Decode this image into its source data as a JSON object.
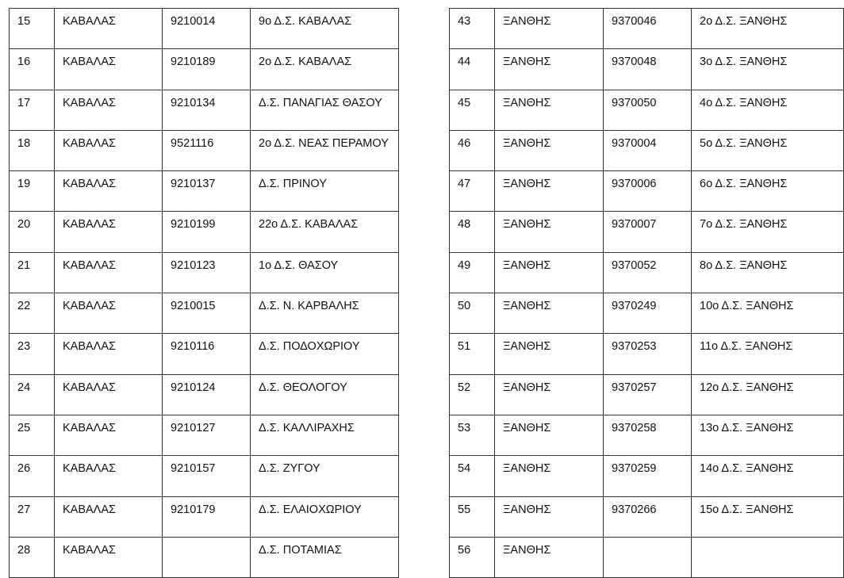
{
  "left_table": {
    "rows": [
      {
        "no": "15",
        "prefecture": "ΚΑΒΑΛΑΣ",
        "code": "9210014",
        "school": "9ο Δ.Σ. ΚΑΒΑΛΑΣ"
      },
      {
        "no": "16",
        "prefecture": "ΚΑΒΑΛΑΣ",
        "code": "9210189",
        "school": "2ο Δ.Σ. ΚΑΒΑΛΑΣ"
      },
      {
        "no": "17",
        "prefecture": "ΚΑΒΑΛΑΣ",
        "code": "9210134",
        "school": "Δ.Σ. ΠΑΝΑΓΙΑΣ ΘΑΣΟΥ"
      },
      {
        "no": "18",
        "prefecture": "ΚΑΒΑΛΑΣ",
        "code": "9521116",
        "school": "2ο Δ.Σ. ΝΕΑΣ ΠΕΡΑΜΟΥ"
      },
      {
        "no": "19",
        "prefecture": "ΚΑΒΑΛΑΣ",
        "code": "9210137",
        "school": " Δ.Σ. ΠΡΙΝΟΥ"
      },
      {
        "no": "20",
        "prefecture": "ΚΑΒΑΛΑΣ",
        "code": "9210199",
        "school": "22ο Δ.Σ. ΚΑΒΑΛΑΣ"
      },
      {
        "no": "21",
        "prefecture": "ΚΑΒΑΛΑΣ",
        "code": "9210123",
        "school": "1ο Δ.Σ. ΘΑΣΟΥ"
      },
      {
        "no": "22",
        "prefecture": "ΚΑΒΑΛΑΣ",
        "code": "9210015",
        "school": "Δ.Σ. Ν. ΚΑΡΒΑΛΗΣ"
      },
      {
        "no": "23",
        "prefecture": "ΚΑΒΑΛΑΣ",
        "code": "9210116",
        "school": "Δ.Σ. ΠΟΔΟΧΩΡΙΟΥ"
      },
      {
        "no": "24",
        "prefecture": "ΚΑΒΑΛΑΣ",
        "code": "9210124",
        "school": "Δ.Σ. ΘΕΟΛΟΓΟΥ"
      },
      {
        "no": "25",
        "prefecture": "ΚΑΒΑΛΑΣ",
        "code": "9210127",
        "school": "Δ.Σ. ΚΑΛΛΙΡΑΧΗΣ"
      },
      {
        "no": "26",
        "prefecture": "ΚΑΒΑΛΑΣ",
        "code": "9210157",
        "school": "Δ.Σ. ΖΥΓΟΥ"
      },
      {
        "no": "27",
        "prefecture": "ΚΑΒΑΛΑΣ",
        "code": "9210179",
        "school": "Δ.Σ. ΕΛΑΙΟΧΩΡΙΟΥ"
      },
      {
        "no": "28",
        "prefecture": "ΚΑΒΑΛΑΣ",
        "code": "",
        "school": "Δ.Σ. ΠΟΤΑΜΙΑΣ"
      }
    ]
  },
  "right_table": {
    "rows": [
      {
        "no": "43",
        "prefecture": "ΞΑΝΘΗΣ",
        "code": "9370046",
        "school": "2ο Δ.Σ. ΞΑΝΘΗΣ"
      },
      {
        "no": "44",
        "prefecture": "ΞΑΝΘΗΣ",
        "code": "9370048",
        "school": "3ο Δ.Σ. ΞΑΝΘΗΣ"
      },
      {
        "no": "45",
        "prefecture": "ΞΑΝΘΗΣ",
        "code": "9370050",
        "school": "4ο Δ.Σ. ΞΑΝΘΗΣ"
      },
      {
        "no": "46",
        "prefecture": "ΞΑΝΘΗΣ",
        "code": "9370004",
        "school": "5ο Δ.Σ. ΞΑΝΘΗΣ"
      },
      {
        "no": "47",
        "prefecture": "ΞΑΝΘΗΣ",
        "code": "9370006",
        "school": "6ο Δ.Σ. ΞΑΝΘΗΣ"
      },
      {
        "no": "48",
        "prefecture": "ΞΑΝΘΗΣ",
        "code": "9370007",
        "school": "7ο Δ.Σ. ΞΑΝΘΗΣ"
      },
      {
        "no": "49",
        "prefecture": "ΞΑΝΘΗΣ",
        "code": "9370052",
        "school": "8ο Δ.Σ. ΞΑΝΘΗΣ"
      },
      {
        "no": "50",
        "prefecture": "ΞΑΝΘΗΣ",
        "code": "9370249",
        "school": "10ο Δ.Σ. ΞΑΝΘΗΣ"
      },
      {
        "no": "51",
        "prefecture": "ΞΑΝΘΗΣ",
        "code": "9370253",
        "school": "11ο Δ.Σ. ΞΑΝΘΗΣ"
      },
      {
        "no": "52",
        "prefecture": "ΞΑΝΘΗΣ",
        "code": "9370257",
        "school": "12ο Δ.Σ. ΞΑΝΘΗΣ"
      },
      {
        "no": "53",
        "prefecture": "ΞΑΝΘΗΣ",
        "code": "9370258",
        "school": "13ο Δ.Σ. ΞΑΝΘΗΣ"
      },
      {
        "no": "54",
        "prefecture": "ΞΑΝΘΗΣ",
        "code": "9370259",
        "school": "14ο Δ.Σ. ΞΑΝΘΗΣ"
      },
      {
        "no": "55",
        "prefecture": "ΞΑΝΘΗΣ",
        "code": "9370266",
        "school": "15ο Δ.Σ. ΞΑΝΘΗΣ"
      },
      {
        "no": "56",
        "prefecture": "ΞΑΝΘΗΣ",
        "code": "",
        "school": ""
      }
    ]
  }
}
